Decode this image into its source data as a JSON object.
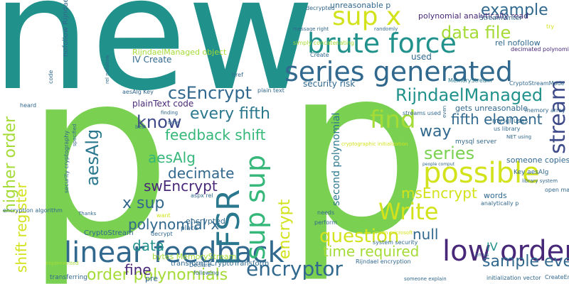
{
  "words": [
    {
      "text": "new",
      "color": "#21918c"
    },
    {
      "text": "p",
      "color": "#7ad151"
    },
    {
      "text": "p",
      "color": "#7ad151"
    },
    {
      "text": "sup x",
      "color": "#d2e21b"
    },
    {
      "text": "brute force",
      "color": "#21918c"
    },
    {
      "text": "series generated",
      "color": "#31688e"
    },
    {
      "text": "example",
      "color": "#31688e"
    },
    {
      "text": "data file",
      "color": "#a5db36"
    },
    {
      "text": "csEncrypt",
      "color": "#31688e"
    },
    {
      "text": "RijndaelManaged",
      "color": "#21918c"
    },
    {
      "text": "know",
      "color": "#3e4a89"
    },
    {
      "text": "every fifth",
      "color": "#2a788e"
    },
    {
      "text": "find",
      "color": "#a5db36"
    },
    {
      "text": "feedback shift",
      "color": "#35b779"
    },
    {
      "text": "way",
      "color": "#31688e"
    },
    {
      "text": "fifth element",
      "color": "#31688e"
    },
    {
      "text": "stream",
      "color": "#3e4a89"
    },
    {
      "text": "aesAlg",
      "color": "#2a788e"
    },
    {
      "text": "decimate",
      "color": "#35b779"
    },
    {
      "text": "series",
      "color": "#31688e"
    },
    {
      "text": "swEncrypt",
      "color": "#7ad151"
    },
    {
      "text": "possible",
      "color": "#482878"
    },
    {
      "text": "x sup",
      "color": "#d2e21b"
    },
    {
      "text": "msEncrypt",
      "color": "#31688e"
    },
    {
      "text": "Write",
      "color": "#d2e21b"
    },
    {
      "text": "polynomial x",
      "color": "#d2e21b"
    },
    {
      "text": "question",
      "color": "#31688e"
    },
    {
      "text": "null",
      "color": "#d2e21b"
    },
    {
      "text": "linear feedback",
      "color": "#31688e"
    },
    {
      "text": "data",
      "color": "#31688e"
    },
    {
      "text": "low order",
      "color": "#21918c"
    },
    {
      "text": "IV",
      "color": "#482878"
    },
    {
      "text": "time required",
      "color": "#21918c"
    },
    {
      "text": "sample every",
      "color": "#a5db36"
    },
    {
      "text": "encryptor",
      "color": "#31688e"
    },
    {
      "text": "order polynomials",
      "color": "#31688e"
    },
    {
      "text": "fine",
      "color": "#a5db36"
    },
    {
      "text": "LFSR",
      "color": "#482878"
    },
    {
      "text": "sup sup",
      "color": "#2a788e"
    },
    {
      "text": "encrypt",
      "color": "#35b779"
    },
    {
      "text": "higher order",
      "color": "#d2e21b"
    },
    {
      "text": "shift register",
      "color": "#a5db36"
    },
    {
      "text": "second polynomial",
      "color": "#d2e21b"
    },
    {
      "text": "unreasonable p",
      "color": "#2a788e"
    },
    {
      "text": "polynomial analytically read",
      "color": "#31688e"
    },
    {
      "text": "StreamWriter",
      "color": "#482878"
    },
    {
      "text": "rel nofollow",
      "color": "#31688e"
    },
    {
      "text": "used",
      "color": "#31688e"
    },
    {
      "text": "decimated polynomial",
      "color": "#31688e"
    },
    {
      "text": "MemoryStream",
      "color": "#482878"
    },
    {
      "text": "CryptoStreamMode",
      "color": "#2a788e"
    },
    {
      "text": "security risk",
      "color": "#31688e"
    },
    {
      "text": "RijndaelManaged object",
      "color": "#31688e"
    },
    {
      "text": "IV Create",
      "color": "#a5db36"
    },
    {
      "text": "aesAlg Key",
      "color": "#31688e"
    },
    {
      "text": "plainText code",
      "color": "#31688e"
    },
    {
      "text": "gets unreasonable",
      "color": "#482878"
    },
    {
      "text": "streams used",
      "color": "#31688e"
    },
    {
      "text": "memory array",
      "color": "#31688e"
    },
    {
      "text": "mysql uses",
      "color": "#31688e"
    },
    {
      "text": "us library",
      "color": "#31688e"
    },
    {
      "text": "mysql server",
      "color": "#31688e"
    },
    {
      "text": "NET using",
      "color": "#31688e"
    },
    {
      "text": "someone copies",
      "color": "#31688e"
    },
    {
      "text": "Key aesAlg",
      "color": "#31688e"
    },
    {
      "text": "library system",
      "color": "#31688e"
    },
    {
      "text": "open machine",
      "color": "#31688e"
    },
    {
      "text": "words",
      "color": "#31688e"
    },
    {
      "text": "analytically p",
      "color": "#31688e"
    },
    {
      "text": "bytes MemoryStream",
      "color": "#31688e"
    },
    {
      "text": "CryptoStream",
      "color": "#a5db36"
    },
    {
      "text": "encrypted",
      "color": "#31688e"
    },
    {
      "text": "place",
      "color": "#31688e"
    },
    {
      "text": "decrypt",
      "color": "#31688e"
    },
    {
      "text": "want",
      "color": "#31688e"
    },
    {
      "text": "Thanks",
      "color": "#d2e21b"
    },
    {
      "text": "transform ICryptoTransform",
      "color": "#31688e"
    },
    {
      "text": "pre",
      "color": "#31688e"
    },
    {
      "text": "Declare",
      "color": "#31688e"
    },
    {
      "text": "following",
      "color": "#31688e"
    },
    {
      "text": "transferring",
      "color": "#31688e"
    },
    {
      "text": "implemented",
      "color": "#31688e"
    },
    {
      "text": "encryption algorithm",
      "color": "#a5db36"
    },
    {
      "text": "aspx rel",
      "color": "#31688e"
    },
    {
      "text": "needs",
      "color": "#31688e"
    },
    {
      "text": "perform",
      "color": "#31688e"
    },
    {
      "text": "system security",
      "color": "#31688e"
    },
    {
      "text": "Rijndael encryption",
      "color": "#31688e"
    },
    {
      "text": "someone explain",
      "color": "#31688e"
    },
    {
      "text": "initialization vector",
      "color": "#31688e"
    },
    {
      "text": "CreateEncryptor",
      "color": "#31688e"
    },
    {
      "text": "en us",
      "color": "#31688e"
    },
    {
      "text": "msdn microsoft",
      "color": "#31688e"
    },
    {
      "text": "people comput",
      "color": "#d2e21b"
    },
    {
      "text": "cryptographic initialization",
      "color": "#31688e"
    },
    {
      "text": "plain text",
      "color": "#d2e21b"
    },
    {
      "text": "href",
      "color": "#31688e"
    },
    {
      "text": "Create",
      "color": "#31688e"
    },
    {
      "text": "randomly",
      "color": "#31688e"
    },
    {
      "text": "message right",
      "color": "#31688e"
    },
    {
      "text": "simply concatenating",
      "color": "#31688e"
    },
    {
      "text": "decrypted",
      "color": "#a5db36"
    },
    {
      "text": "try",
      "color": "#31688e"
    },
    {
      "text": "best",
      "color": "#d2e21b"
    },
    {
      "text": "time",
      "color": "#31688e"
    },
    {
      "text": "finding",
      "color": "#31688e"
    },
    {
      "text": "heard",
      "color": "#31688e"
    },
    {
      "text": "even",
      "color": "#31688e"
    },
    {
      "text": "code",
      "color": "#31688e"
    },
    {
      "text": "nofollow Rijndael",
      "color": "#31688e"
    },
    {
      "text": "rel nofollow",
      "color": "#31688e"
    },
    {
      "text": "security cryptography",
      "color": "#31688e"
    },
    {
      "text": "specified",
      "color": "#31688e"
    },
    {
      "text": "generated",
      "color": "#31688e"
    }
  ]
}
